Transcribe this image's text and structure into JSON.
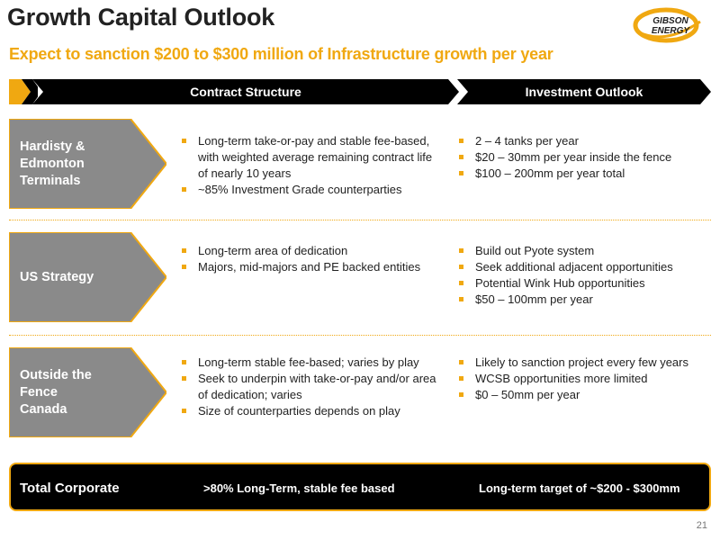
{
  "header": {
    "title": "Growth Capital Outlook",
    "subtitle": "Expect to sanction $200 to $300 million of Infrastructure growth per year"
  },
  "logo": {
    "line1": "GIBSON",
    "line2": "ENERGY",
    "icon": "swoosh-logo-icon"
  },
  "columns": {
    "contract": "Contract Structure",
    "investment": "Investment Outlook"
  },
  "rows": [
    {
      "label_lines": [
        "Hardisty &",
        "Edmonton",
        "Terminals"
      ],
      "contract": [
        "Long-term take-or-pay and stable fee-based, with weighted average remaining contract life of nearly 10 years",
        "~85% Investment Grade counterparties"
      ],
      "investment": [
        "2 – 4 tanks per year",
        "$20 – 30mm per year inside the fence",
        "$100 – 200mm per year total"
      ]
    },
    {
      "label_lines": [
        "US Strategy"
      ],
      "contract": [
        "Long-term area of dedication",
        "Majors, mid-majors and PE backed entities"
      ],
      "investment": [
        "Build out Pyote system",
        "Seek additional adjacent opportunities",
        "Potential Wink Hub opportunities",
        "$50 – 100mm per year"
      ]
    },
    {
      "label_lines": [
        "Outside the",
        "Fence",
        "Canada"
      ],
      "contract": [
        "Long-term stable fee-based; varies by play",
        "Seek to underpin with take-or-pay and/or area of dedication; varies",
        "Size of counterparties depends on play"
      ],
      "investment": [
        "Likely to sanction project every few years",
        "WCSB opportunities more limited",
        "$0 – 50mm per year"
      ]
    }
  ],
  "total": {
    "label": "Total Corporate",
    "contract": ">80% Long-Term, stable fee based",
    "investment": "Long-term target of ~$200 - $300mm"
  },
  "page_number": "21",
  "colors": {
    "accent": "#f0a811",
    "dark": "#000000",
    "row_fill": "#8a8a8a"
  }
}
